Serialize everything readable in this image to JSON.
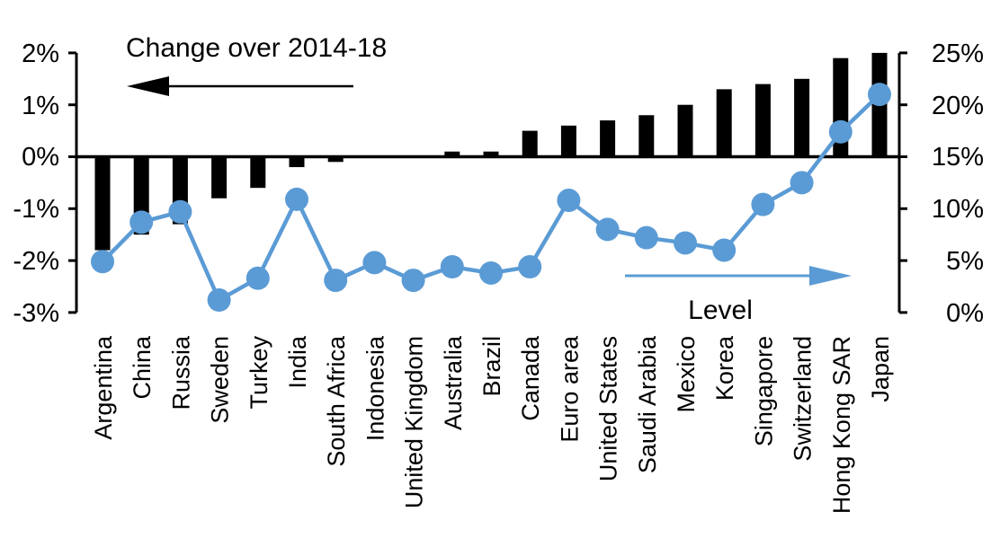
{
  "chart_data": {
    "type": "bar",
    "subtype": "dual-axis bar + line",
    "title": "Change over 2014-18",
    "annotations": {
      "change_label": "Change over 2014-18",
      "change_arrow_direction": "left",
      "level_label": "Level",
      "level_arrow_direction": "right"
    },
    "categories": [
      "Argentina",
      "China",
      "Russia",
      "Sweden",
      "Turkey",
      "India",
      "South Africa",
      "Indonesia",
      "United Kingdom",
      "Australia",
      "Brazil",
      "Canada",
      "Euro area",
      "United States",
      "Saudi Arabia",
      "Mexico",
      "Korea",
      "Singapore",
      "Switzerland",
      "Hong Kong SAR",
      "Japan"
    ],
    "series": [
      {
        "name": "Change over 2014-18",
        "type": "bar",
        "axis": "left",
        "color": "#000000",
        "values": [
          -1.8,
          -1.5,
          -1.3,
          -0.8,
          -0.6,
          -0.2,
          -0.1,
          0.0,
          0.0,
          0.1,
          0.1,
          0.5,
          0.6,
          0.7,
          0.8,
          1.0,
          1.3,
          1.4,
          1.5,
          1.9,
          2.0
        ]
      },
      {
        "name": "Level",
        "type": "line",
        "axis": "right",
        "color": "#5B9BD5",
        "values": [
          4.9,
          8.7,
          9.7,
          1.2,
          3.3,
          10.9,
          3.1,
          4.8,
          3.1,
          4.4,
          3.8,
          4.4,
          10.8,
          8.0,
          7.2,
          6.7,
          6.0,
          10.4,
          12.5,
          17.4,
          21.0
        ]
      }
    ],
    "left_axis": {
      "labels": [
        "2%",
        "1%",
        "0%",
        "-1%",
        "-2%",
        "-3%"
      ],
      "tick_values": [
        2,
        1,
        0,
        -1,
        -2,
        -3
      ],
      "min": -3,
      "max": 2
    },
    "right_axis": {
      "labels": [
        "25%",
        "20%",
        "15%",
        "10%",
        "5%",
        "0%"
      ],
      "tick_values": [
        25,
        20,
        15,
        10,
        5,
        0
      ],
      "min": 0,
      "max": 25
    },
    "grid": "off",
    "legend": "none (arrow annotations instead)",
    "colors": {
      "bar": "#000000",
      "line": "#5B9BD5",
      "axis": "#000000",
      "background": "#ffffff"
    }
  }
}
